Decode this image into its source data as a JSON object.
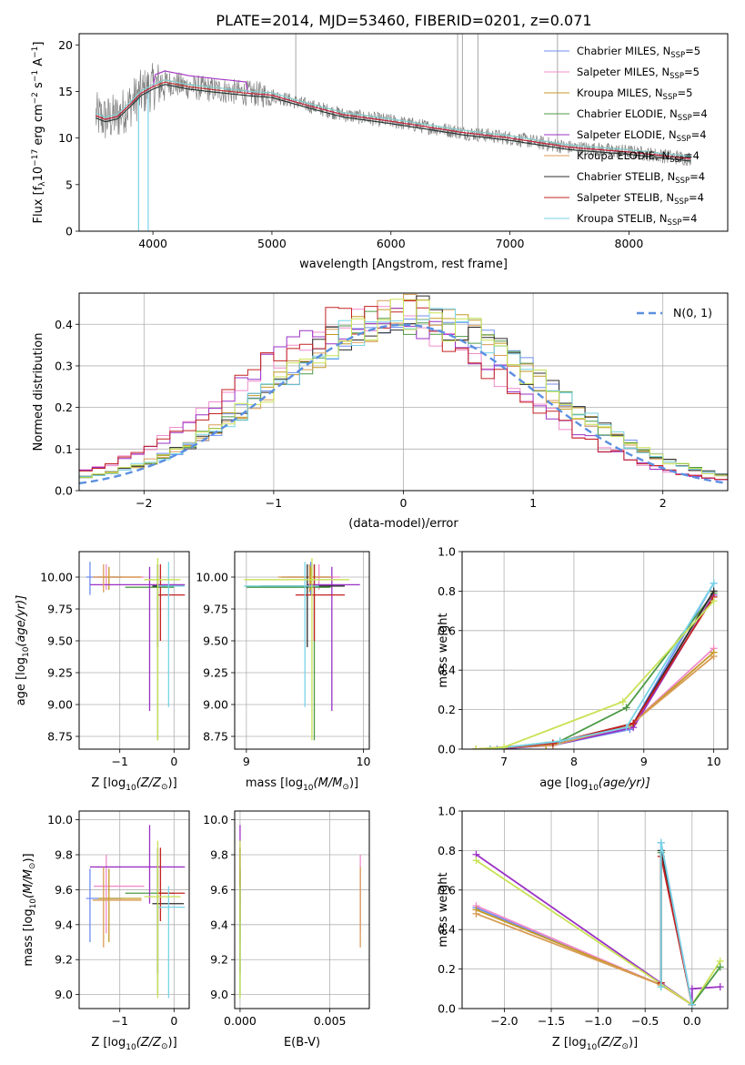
{
  "title": "PLATE=2014, MJD=53460, FIBERID=0201, z=0.071",
  "colors": [
    "#6f8ef0",
    "#f08ccc",
    "#c49a25",
    "#4e9a47",
    "#9b30c4",
    "#d89c55",
    "#2b2b2b",
    "#c42222",
    "#78d3e6"
  ],
  "models": [
    {
      "label": "Chabrier MILES, N",
      "sub": "SSP",
      "tail": "=5",
      "color": "#6f8ef0"
    },
    {
      "label": "Salpeter MILES, N",
      "sub": "SSP",
      "tail": "=5",
      "color": "#f08ccc"
    },
    {
      "label": "Kroupa MILES, N",
      "sub": "SSP",
      "tail": "=5",
      "color": "#c49a25"
    },
    {
      "label": "Chabrier ELODIE, N",
      "sub": "SSP",
      "tail": "=4",
      "color": "#4e9a47"
    },
    {
      "label": "Salpeter ELODIE, N",
      "sub": "SSP",
      "tail": "=4",
      "color": "#9b30c4"
    },
    {
      "label": "Kroupa ELODIE, N",
      "sub": "SSP",
      "tail": "=4",
      "color": "#d89c55"
    },
    {
      "label": "Chabrier STELIB, N",
      "sub": "SSP",
      "tail": "=4",
      "color": "#2b2b2b"
    },
    {
      "label": "Salpeter STELIB, N",
      "sub": "SSP",
      "tail": "=4",
      "color": "#c42222"
    },
    {
      "label": "Kroupa STELIB, N",
      "sub": "SSP",
      "tail": "=4",
      "color": "#78d3e6"
    }
  ],
  "chart_data": [
    {
      "type": "line",
      "name": "spectrum",
      "xlabel": "wavelength [Angstrom, rest frame]",
      "ylabel": "Flux [f",
      "ylabel_sub": "λ",
      "ylabel_tail": "10",
      "ylabel_sup": "−17",
      "ylabel_end": " erg cm",
      "ylabel_sup2": "−2",
      "ylabel_end2": " s",
      "ylabel_sup3": "−1",
      "ylabel_end3": " A",
      "ylabel_sup4": "−1",
      "ylabel_close": "]",
      "xlim": [
        3380,
        8830
      ],
      "ylim": [
        0,
        21.2
      ],
      "xticks": [
        4000,
        5000,
        6000,
        7000,
        8000
      ],
      "yticks": [
        0,
        5,
        10,
        15,
        20
      ],
      "data_color": "#808080",
      "continuum": {
        "x": [
          3500,
          3600,
          3700,
          3800,
          3900,
          4000,
          4100,
          4300,
          4500,
          4800,
          5000,
          5300,
          5600,
          6000,
          6300,
          6600,
          7000,
          7500,
          8000,
          8500
        ],
        "y": [
          12.5,
          12.0,
          12.3,
          13.5,
          14.8,
          15.5,
          16.0,
          15.5,
          15.2,
          14.8,
          14.6,
          13.5,
          12.5,
          11.8,
          11.2,
          10.6,
          10.0,
          9.0,
          8.5,
          7.8
        ]
      }
    },
    {
      "type": "line",
      "name": "residual histogram",
      "xlabel": "(data-model)/error",
      "ylabel": "Normed distribution",
      "xlim": [
        -2.5,
        2.5
      ],
      "ylim": [
        0,
        0.475
      ],
      "xticks": [
        -2,
        -1,
        0,
        1,
        2
      ],
      "yticks": [
        0.0,
        0.1,
        0.2,
        0.3,
        0.4
      ],
      "legend": "N(0, 1)",
      "legend_position": "top-right"
    },
    {
      "type": "scatter",
      "name": "age vs Z",
      "xlabel": "Z [log",
      "xlabel_sub": "10",
      "xlabel_tail": "(Z/Z",
      "xlabel_sun": "⊙",
      "xlabel_close": ")]",
      "ylabel": "age  [log",
      "ylabel_sub": "10",
      "ylabel_tail": "(age/yr)]",
      "xlim": [
        -1.75,
        0.28
      ],
      "ylim": [
        8.65,
        10.2
      ],
      "xticks": [
        -1,
        0
      ],
      "yticks": [
        8.75,
        9.0,
        9.25,
        9.5,
        9.75,
        10.0
      ]
    },
    {
      "type": "scatter",
      "name": "age vs mass",
      "xlabel": "mass [log",
      "xlabel_sub": "10",
      "xlabel_tail": "(M/M",
      "xlabel_sun": "⊙",
      "xlabel_close": ")]",
      "xlim": [
        8.9,
        10.05
      ],
      "ylim": [
        8.65,
        10.2
      ],
      "xticks": [
        9,
        10
      ],
      "yticks": [
        8.75,
        9.0,
        9.25,
        9.5,
        9.75,
        10.0
      ]
    },
    {
      "type": "line",
      "name": "mass weight vs age",
      "xlabel": "age  [log",
      "xlabel_sub": "10",
      "xlabel_tail": "(age/yr)]",
      "ylabel": "mass weight",
      "xlim": [
        6.4,
        10.2
      ],
      "ylim": [
        0,
        1.0
      ],
      "xticks": [
        7,
        8,
        9,
        10
      ],
      "yticks": [
        0.0,
        0.2,
        0.4,
        0.6,
        0.8,
        1.0
      ],
      "series": [
        {
          "color": "#6f8ef0",
          "x": [
            6.9,
            7.7,
            8.8,
            10.0
          ],
          "y": [
            0.0,
            0.02,
            0.1,
            0.84
          ]
        },
        {
          "color": "#f08ccc",
          "x": [
            6.6,
            7.7,
            8.8,
            10.0
          ],
          "y": [
            0.0,
            0.03,
            0.12,
            0.51
          ]
        },
        {
          "color": "#c49a25",
          "x": [
            6.6,
            7.6,
            8.8,
            10.0
          ],
          "y": [
            0.0,
            0.02,
            0.12,
            0.49
          ]
        },
        {
          "color": "#4e9a47",
          "x": [
            6.8,
            7.8,
            8.75,
            10.0
          ],
          "y": [
            0.0,
            0.04,
            0.21,
            0.79
          ]
        },
        {
          "color": "#9b30c4",
          "x": [
            6.8,
            7.7,
            8.85,
            10.0
          ],
          "y": [
            0.0,
            0.02,
            0.11,
            0.78
          ]
        },
        {
          "color": "#d89c55",
          "x": [
            6.6,
            7.7,
            8.8,
            10.0
          ],
          "y": [
            0.0,
            0.02,
            0.12,
            0.47
          ]
        },
        {
          "color": "#2b2b2b",
          "x": [
            6.8,
            7.7,
            8.85,
            10.0
          ],
          "y": [
            0.0,
            0.03,
            0.13,
            0.8
          ]
        },
        {
          "color": "#c42222",
          "x": [
            6.8,
            7.7,
            8.85,
            10.0
          ],
          "y": [
            0.0,
            0.03,
            0.13,
            0.77
          ]
        },
        {
          "color": "#78d3e6",
          "x": [
            6.8,
            7.8,
            8.75,
            10.0
          ],
          "y": [
            0.0,
            0.04,
            0.11,
            0.84
          ]
        },
        {
          "color": "#c9e255",
          "x": [
            6.6,
            7.0,
            8.7,
            10.0
          ],
          "y": [
            0.0,
            0.01,
            0.24,
            0.75
          ]
        }
      ]
    },
    {
      "type": "scatter",
      "name": "mass vs Z",
      "xlabel": "Z [log",
      "xlabel_sub": "10",
      "xlabel_tail": "(Z/Z",
      "xlabel_sun": "⊙",
      "xlabel_close": ")]",
      "ylabel": "mass [log",
      "ylabel_sub": "10",
      "ylabel_tail": "(M/M",
      "ylabel_sun": "⊙",
      "ylabel_close": ")]",
      "xlim": [
        -1.75,
        0.28
      ],
      "ylim": [
        8.92,
        10.05
      ],
      "xticks": [
        -1,
        0
      ],
      "yticks": [
        9.0,
        9.2,
        9.4,
        9.6,
        9.8,
        10.0
      ]
    },
    {
      "type": "scatter",
      "name": "mass vs E(B-V)",
      "xlabel": "E(B-V)",
      "xlim": [
        -0.0003,
        0.0072
      ],
      "ylim": [
        8.92,
        10.05
      ],
      "xticks": [
        0.0,
        0.005
      ],
      "xtick_labels": [
        "0.000",
        "0.005"
      ],
      "yticks": [
        9.0,
        9.2,
        9.4,
        9.6,
        9.8,
        10.0
      ]
    },
    {
      "type": "line",
      "name": "mass weight vs Z",
      "xlabel": "Z [log",
      "xlabel_sub": "10",
      "xlabel_tail": "(Z/Z",
      "xlabel_sun": "⊙",
      "xlabel_close": ")]",
      "ylabel": "mass weight",
      "xlim": [
        -2.45,
        0.38
      ],
      "ylim": [
        0,
        1.0
      ],
      "xticks": [
        -2.0,
        -1.5,
        -1.0,
        -0.5,
        0.0
      ],
      "xtick_labels": [
        "−2.0",
        "−1.5",
        "−1.0",
        "−0.5",
        "0.0"
      ],
      "yticks": [
        0.0,
        0.2,
        0.4,
        0.6,
        0.8,
        1.0
      ],
      "series": [
        {
          "color": "#6f8ef0",
          "x": [
            -2.3,
            -0.33,
            -0.33,
            0.0
          ],
          "y": [
            0.51,
            0.12,
            0.84,
            0.02
          ]
        },
        {
          "color": "#f08ccc",
          "x": [
            -2.3,
            -0.33,
            0.0
          ],
          "y": [
            0.52,
            0.12,
            0.02
          ]
        },
        {
          "color": "#c49a25",
          "x": [
            -2.3,
            -0.33,
            0.0
          ],
          "y": [
            0.5,
            0.12,
            0.02
          ]
        },
        {
          "color": "#d89c55",
          "x": [
            -2.3,
            -0.33,
            0.0
          ],
          "y": [
            0.48,
            0.12,
            0.02
          ]
        },
        {
          "color": "#9b30c4",
          "x": [
            -2.3,
            0.0,
            0.0,
            0.3
          ],
          "y": [
            0.78,
            0.02,
            0.1,
            0.11
          ]
        },
        {
          "color": "#c9e255",
          "x": [
            -2.3,
            0.0,
            0.0,
            0.3
          ],
          "y": [
            0.75,
            0.02,
            0.02,
            0.24
          ]
        },
        {
          "color": "#4e9a47",
          "x": [
            -0.33,
            -0.33,
            0.0,
            0.3
          ],
          "y": [
            0.11,
            0.79,
            0.02,
            0.21
          ]
        },
        {
          "color": "#2b2b2b",
          "x": [
            -0.33,
            -0.33,
            0.0
          ],
          "y": [
            0.13,
            0.8,
            0.02
          ]
        },
        {
          "color": "#c42222",
          "x": [
            -0.33,
            -0.33,
            0.0
          ],
          "y": [
            0.13,
            0.77,
            0.02
          ]
        },
        {
          "color": "#78d3e6",
          "x": [
            -0.33,
            -0.33,
            0.0
          ],
          "y": [
            0.11,
            0.84,
            0.02
          ]
        }
      ]
    }
  ],
  "fits": [
    {
      "color": "#6f8ef0",
      "Z": -1.55,
      "Zlo": -1.62,
      "Zhi": -0.95,
      "age": 10.0,
      "alo": 9.86,
      "ahi": 10.12,
      "mass": 9.55,
      "mlo": 9.3,
      "mhi": 9.72,
      "ebv": 0.0
    },
    {
      "color": "#f08ccc",
      "Z": -1.25,
      "Zlo": -1.48,
      "Zhi": -0.55,
      "age": 10.0,
      "alo": 9.9,
      "ahi": 10.1,
      "mass": 9.62,
      "mlo": 9.35,
      "mhi": 9.8,
      "ebv": 0.0067
    },
    {
      "color": "#c49a25",
      "Z": -1.2,
      "Zlo": -1.4,
      "Zhi": -0.6,
      "age": 10.0,
      "alo": 9.9,
      "ahi": 10.08,
      "mass": 9.55,
      "mlo": 9.3,
      "mhi": 9.72,
      "ebv": 0.0
    },
    {
      "color": "#4e9a47",
      "Z": -0.3,
      "Zlo": -0.9,
      "Zhi": 0.0,
      "age": 9.92,
      "alo": 8.72,
      "ahi": 10.1,
      "mass": 9.58,
      "mlo": 9.0,
      "mhi": 9.72,
      "ebv": 0.0
    },
    {
      "color": "#9b30c4",
      "Z": -0.45,
      "Zlo": -1.55,
      "Zhi": 0.2,
      "age": 9.94,
      "alo": 8.95,
      "ahi": 10.08,
      "mass": 9.73,
      "mlo": 9.52,
      "mhi": 9.97,
      "ebv": 0.0
    },
    {
      "color": "#d89c55",
      "Z": -1.3,
      "Zlo": -1.5,
      "Zhi": -0.6,
      "age": 10.0,
      "alo": 9.88,
      "ahi": 10.1,
      "mass": 9.54,
      "mlo": 9.27,
      "mhi": 9.73,
      "ebv": 0.0067
    },
    {
      "color": "#2b2b2b",
      "Z": -0.3,
      "Zlo": -0.4,
      "Zhi": 0.18,
      "age": 9.93,
      "alo": 9.45,
      "ahi": 10.1,
      "mass": 9.52,
      "mlo": 9.12,
      "mhi": 9.84,
      "ebv": 0.0
    },
    {
      "color": "#c42222",
      "Z": -0.25,
      "Zlo": -0.3,
      "Zhi": 0.2,
      "age": 9.86,
      "alo": 9.5,
      "ahi": 10.1,
      "mass": 9.58,
      "mlo": 9.42,
      "mhi": 9.84,
      "ebv": 0.0
    },
    {
      "color": "#78d3e6",
      "Z": -0.1,
      "Zlo": -0.3,
      "Zhi": 0.2,
      "age": 9.93,
      "alo": 8.98,
      "ahi": 10.12,
      "mass": 9.5,
      "mlo": 8.98,
      "mhi": 9.62,
      "ebv": 0.0
    },
    {
      "color": "#c9e255",
      "Z": -0.3,
      "Zlo": -0.55,
      "Zhi": 0.12,
      "age": 9.98,
      "alo": 8.72,
      "ahi": 10.15,
      "mass": 9.56,
      "mlo": 8.98,
      "mhi": 9.88,
      "ebv": 0.0
    }
  ]
}
